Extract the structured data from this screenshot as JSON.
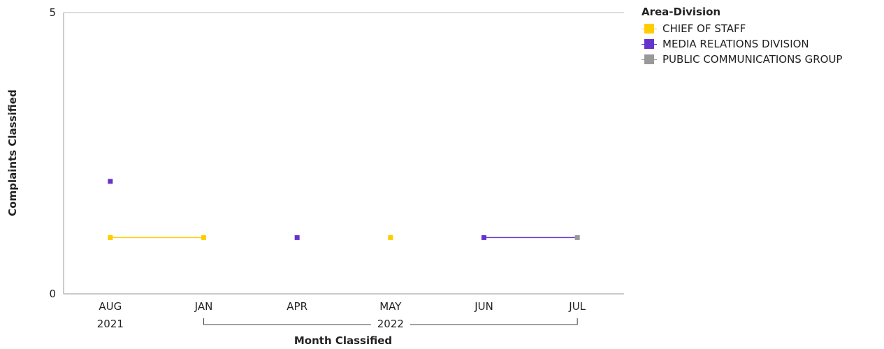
{
  "chart_data": {
    "type": "line",
    "ylabel": "Complaints Classified",
    "xlabel": "Month Classified",
    "ylim": [
      0,
      5
    ],
    "y_ticks": [
      "0",
      "5"
    ],
    "categories": [
      "AUG",
      "JAN",
      "APR",
      "MAY",
      "JUN",
      "JUL"
    ],
    "year_groups": [
      {
        "label": "2021",
        "categories": [
          "AUG"
        ]
      },
      {
        "label": "2022",
        "categories": [
          "JAN",
          "APR",
          "MAY",
          "JUN",
          "JUL"
        ]
      }
    ],
    "legend_title": "Area-Division",
    "legend_position": "top-right",
    "grid": false,
    "series": [
      {
        "name": "CHIEF OF STAFF",
        "color": "#ffcc00",
        "values": [
          1,
          1,
          null,
          1,
          null,
          null
        ]
      },
      {
        "name": "MEDIA RELATIONS DIVISION",
        "color": "#6633cc",
        "values": [
          2,
          null,
          1,
          null,
          1,
          null
        ]
      },
      {
        "name": "PUBLIC COMMUNICATIONS GROUP",
        "color": "#999999",
        "values": [
          null,
          null,
          null,
          null,
          null,
          1
        ]
      }
    ],
    "connect_across": [
      {
        "from_series": "MEDIA RELATIONS DIVISION",
        "from": "JUN",
        "to_series": "PUBLIC COMMUNICATIONS GROUP",
        "to": "JUL",
        "color": "#6633cc"
      }
    ]
  }
}
